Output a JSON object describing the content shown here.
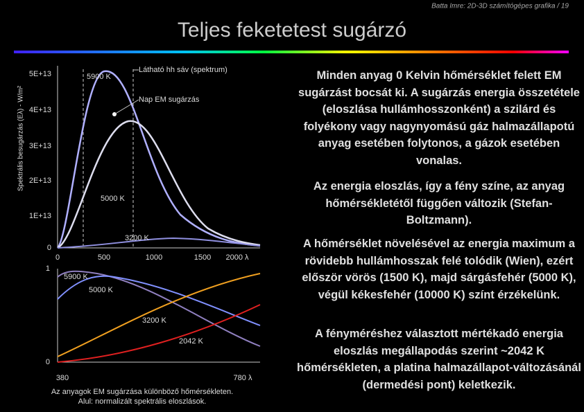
{
  "header": {
    "credit": "Batta Imre: 2D-3D számítógépes grafika / 19",
    "title": "Teljes feketetest sugárzó"
  },
  "upper_chart": {
    "y_axis_label": "Spektrális besugárzás (Eλ) - W/m²",
    "y_ticks": [
      "5E+13",
      "4E+13",
      "3E+13",
      "2E+13",
      "1E+13",
      "0"
    ],
    "x_ticks": [
      "0",
      "500",
      "1000",
      "1500",
      "2000 λ"
    ],
    "annotations": [
      "Látható hh sáv (spektrum)",
      "Nap EM sugárzás"
    ],
    "curve_labels": [
      "5900 K",
      "5000 K",
      "3200 K"
    ]
  },
  "lower_chart": {
    "y_ticks": [
      "1",
      "0"
    ],
    "x_ticks": [
      "380",
      "780 λ"
    ],
    "curve_labels": [
      "5900 K",
      "5000 K",
      "3200 K",
      "2042 K"
    ]
  },
  "caption": [
    "Az anyagok EM sugárzása különböző hőmérsékleten.",
    "Alul: normalizált spektrális eloszlások."
  ],
  "paragraphs": [
    "Minden anyag 0 Kelvin hőmérséklet felett EM sugárzást bocsát ki. A sugárzás energia összetétele (eloszlása hullámhosszonként) a szilárd és folyékony vagy nagynyomású gáz halmazállapotú anyag esetében folytonos, a gázok esetében vonalas.",
    "Az energia eloszlás, így a fény színe, az anyag hőmérsékletétől függően változik (Stefan-Boltzmann).",
    "A hőmérséklet növelésével az energia maximum a rövidebb hullámhosszak felé tolódik (Wien), ezért először vörös (1500 K), majd sárgásfehér (5000 K), végül kékesfehér (10000 K) színt érzékelünk.",
    "A fényméréshez választott mértékadó energia eloszlás megállapodás szerint ~2042 K hőmérsékleten, a platina halmazállapot-változásánál (dermedési pont) keletkezik."
  ]
}
